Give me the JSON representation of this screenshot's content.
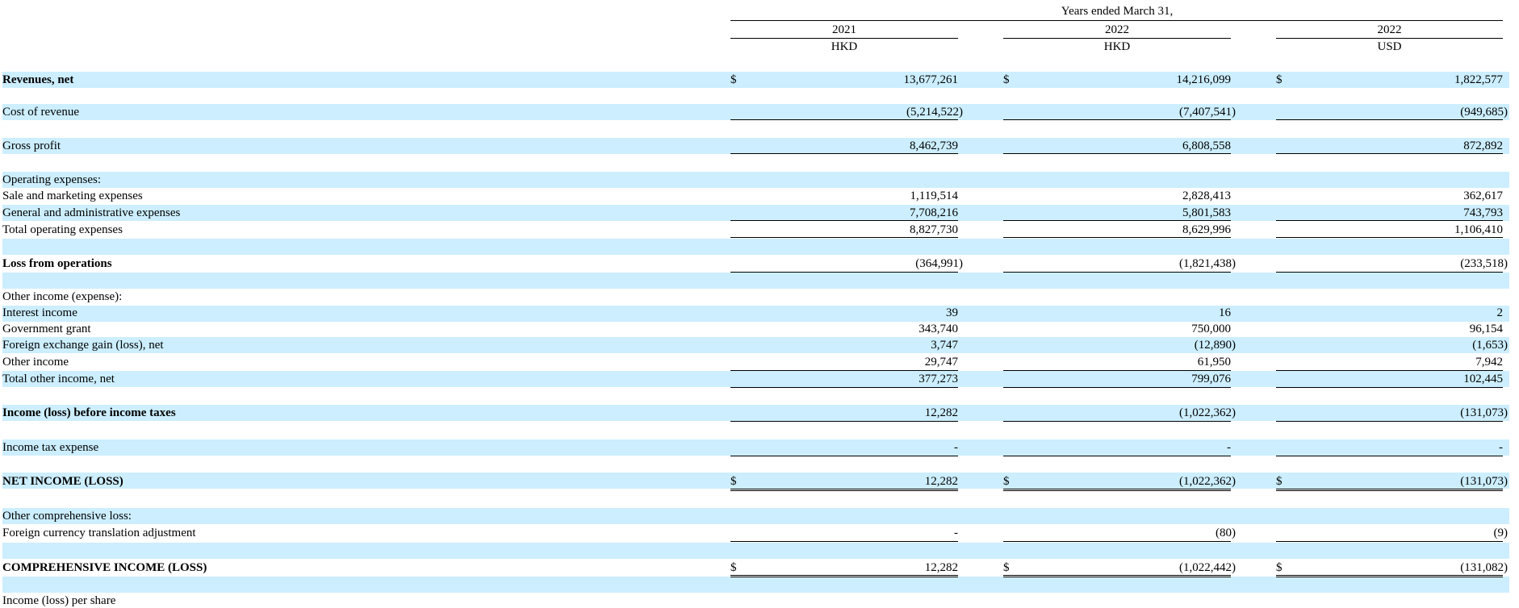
{
  "header": {
    "period": "Years ended March 31,",
    "columns": [
      {
        "year": "2021",
        "currency": "HKD"
      },
      {
        "year": "2022",
        "currency": "HKD"
      },
      {
        "year": "2022",
        "currency": "USD"
      }
    ],
    "currency_symbol": "$"
  },
  "rows": [
    {
      "label": "Revenues, net",
      "values": [
        "13,677,261",
        "14,216,099",
        "1,822,577"
      ]
    },
    {
      "label": "Cost of revenue",
      "values": [
        "(5,214,522)",
        "(7,407,541)",
        "(949,685)"
      ]
    },
    {
      "label": "Gross profit",
      "values": [
        "8,462,739",
        "6,808,558",
        "872,892"
      ]
    },
    {
      "label": "Operating expenses:",
      "values": [
        "",
        "",
        ""
      ]
    },
    {
      "label": "Sale and marketing expenses",
      "values": [
        "1,119,514",
        "2,828,413",
        "362,617"
      ]
    },
    {
      "label": "General and administrative expenses",
      "values": [
        "7,708,216",
        "5,801,583",
        "743,793"
      ]
    },
    {
      "label": "Total operating expenses",
      "values": [
        "8,827,730",
        "8,629,996",
        "1,106,410"
      ]
    },
    {
      "label": "Loss from operations",
      "values": [
        "(364,991)",
        "(1,821,438)",
        "(233,518)"
      ]
    },
    {
      "label": "Other income (expense):",
      "values": [
        "",
        "",
        ""
      ]
    },
    {
      "label": "Interest income",
      "values": [
        "39",
        "16",
        "2"
      ]
    },
    {
      "label": "Government grant",
      "values": [
        "343,740",
        "750,000",
        "96,154"
      ]
    },
    {
      "label": "Foreign exchange gain (loss), net",
      "values": [
        "3,747",
        "(12,890)",
        "(1,653)"
      ]
    },
    {
      "label": "Other income",
      "values": [
        "29,747",
        "61,950",
        "7,942"
      ]
    },
    {
      "label": "Total other income, net",
      "values": [
        "377,273",
        "799,076",
        "102,445"
      ]
    },
    {
      "label": "Income (loss) before income taxes",
      "values": [
        "12,282",
        "(1,022,362)",
        "(131,073)"
      ]
    },
    {
      "label": "Income tax expense",
      "values": [
        "-",
        "-",
        "-"
      ]
    },
    {
      "label": "NET INCOME (LOSS)",
      "values": [
        "12,282",
        "(1,022,362)",
        "(131,073)"
      ]
    },
    {
      "label": "Other comprehensive loss:",
      "values": [
        "",
        "",
        ""
      ]
    },
    {
      "label": "Foreign currency translation adjustment",
      "values": [
        "-",
        "(80)",
        "(9)"
      ]
    },
    {
      "label": "COMPREHENSIVE INCOME (LOSS)",
      "values": [
        "12,282",
        "(1,022,442)",
        "(131,082)"
      ]
    },
    {
      "label": "Income (loss) per share",
      "values": [
        "",
        "",
        ""
      ]
    }
  ]
}
